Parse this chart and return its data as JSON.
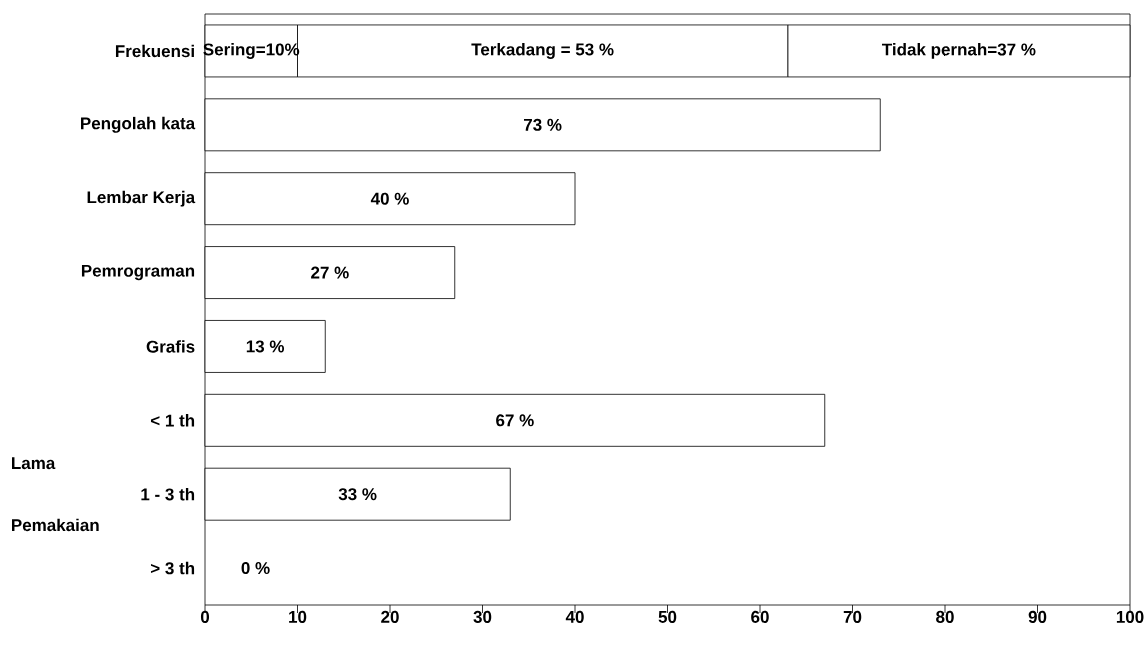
{
  "chart_data": {
    "type": "bar",
    "orientation": "horizontal",
    "stacked": true,
    "categories": [
      "Frekuensi",
      "Pengolah kata",
      "Lembar Kerja",
      "Pemrograman",
      "Grafis",
      "< 1 th",
      "1 - 3 th",
      "> 3 th"
    ],
    "series": [
      {
        "color": "#ffffff",
        "values": [
          10,
          73,
          40,
          27,
          13,
          67,
          33,
          0
        ],
        "value_labels": [
          "Sering=10%",
          "73 %",
          "40 %",
          "27 %",
          "13 %",
          "67 %",
          "33 %",
          "0 %"
        ]
      },
      {
        "color": "#ffffff",
        "values": [
          53,
          null,
          null,
          null,
          null,
          null,
          null,
          null
        ],
        "value_labels": [
          "Terkadang = 53 %",
          null,
          null,
          null,
          null,
          null,
          null,
          null
        ]
      },
      {
        "color": "#ffffff",
        "values": [
          37,
          null,
          null,
          null,
          null,
          null,
          null,
          null
        ],
        "value_labels": [
          "Tidak pernah=37 %",
          null,
          null,
          null,
          null,
          null,
          null,
          null
        ]
      }
    ],
    "xlim": [
      0,
      100
    ],
    "xticks": [
      0,
      10,
      20,
      30,
      40,
      50,
      60,
      70,
      80,
      90,
      100
    ],
    "annotations": [
      "Lama Pemakaian"
    ],
    "grid": false
  }
}
